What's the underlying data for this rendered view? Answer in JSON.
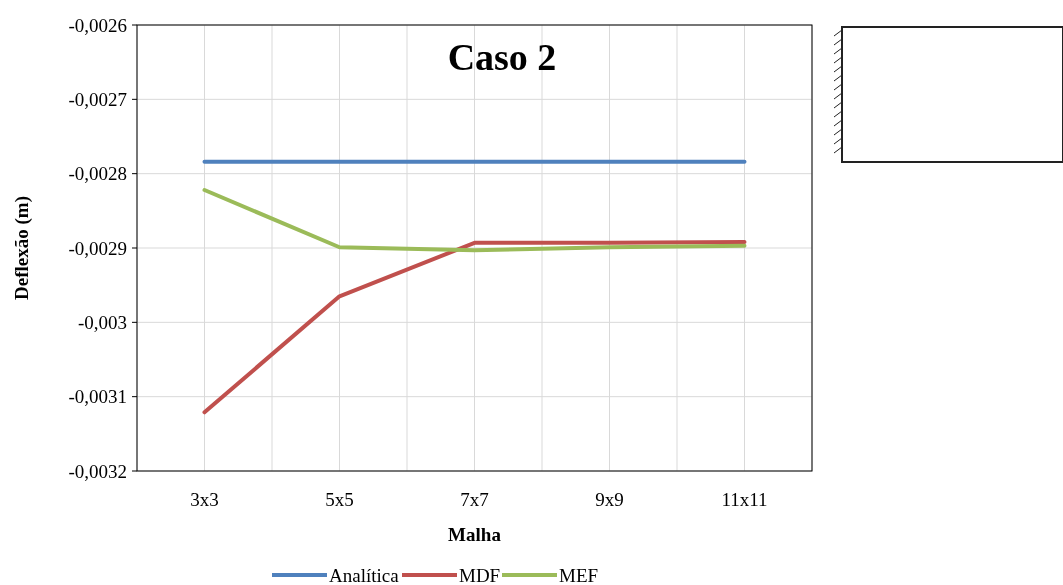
{
  "chart_data": {
    "type": "line",
    "title": "Caso 2",
    "xlabel": "Malha",
    "ylabel": "Deflexão (m)",
    "categories": [
      "3x3",
      "5x5",
      "7x7",
      "9x9",
      "11x11"
    ],
    "series": [
      {
        "name": "Analítica",
        "color": "#4f81bd",
        "values": [
          -0.002784,
          -0.002784,
          -0.002784,
          -0.002784,
          -0.002784
        ]
      },
      {
        "name": "MDF",
        "color": "#c0504d",
        "values": [
          -0.003121,
          -0.002965,
          -0.002893,
          -0.002893,
          -0.002892
        ]
      },
      {
        "name": "MEF",
        "color": "#9bbb59",
        "values": [
          -0.002822,
          -0.002899,
          -0.002903,
          -0.002899,
          -0.002897
        ]
      }
    ],
    "ylim": [
      -0.0032,
      -0.0026
    ],
    "yticks": [
      {
        "value": -0.0032,
        "label": "-0,0032"
      },
      {
        "value": -0.0031,
        "label": "-0,0031"
      },
      {
        "value": -0.003,
        "label": "-0,003"
      },
      {
        "value": -0.0029,
        "label": "-0,0029"
      },
      {
        "value": -0.0028,
        "label": "-0,0028"
      },
      {
        "value": -0.0027,
        "label": "-0,0027"
      },
      {
        "value": -0.0026,
        "label": "-0,0026"
      }
    ],
    "grid": true,
    "legend": "bottom",
    "marker": "none",
    "line_style": "solid"
  }
}
